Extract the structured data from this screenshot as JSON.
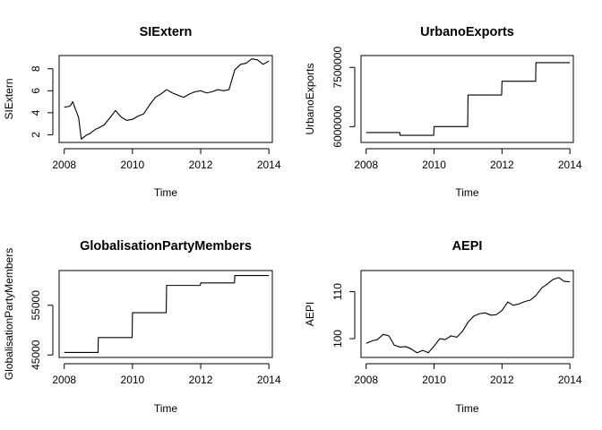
{
  "chart_data": [
    {
      "type": "line",
      "title": "SIExtern",
      "xlabel": "Time",
      "ylabel": "SIExtern",
      "xlim": [
        2007.85,
        2014.1
      ],
      "ylim": [
        1.3,
        9.2
      ],
      "xticks": [
        2008,
        2010,
        2012,
        2014
      ],
      "yticks": [
        2,
        4,
        6,
        8
      ],
      "x": [
        2008.0,
        2008.17,
        2008.25,
        2008.33,
        2008.42,
        2008.5,
        2008.58,
        2008.67,
        2008.75,
        2008.83,
        2008.92,
        2009.0,
        2009.17,
        2009.33,
        2009.5,
        2009.67,
        2009.83,
        2010.0,
        2010.17,
        2010.33,
        2010.5,
        2010.67,
        2010.83,
        2011.0,
        2011.17,
        2011.33,
        2011.5,
        2011.67,
        2011.83,
        2012.0,
        2012.17,
        2012.33,
        2012.5,
        2012.67,
        2012.83,
        2013.0,
        2013.17,
        2013.33,
        2013.5,
        2013.67,
        2013.83,
        2014.0
      ],
      "y": [
        4.5,
        4.6,
        5.0,
        4.3,
        3.6,
        1.6,
        1.8,
        2.0,
        2.1,
        2.3,
        2.5,
        2.6,
        2.9,
        3.5,
        4.2,
        3.6,
        3.3,
        3.4,
        3.7,
        3.9,
        4.7,
        5.4,
        5.7,
        6.1,
        5.8,
        5.6,
        5.4,
        5.7,
        5.9,
        6.0,
        5.8,
        5.9,
        6.1,
        6.0,
        6.1,
        7.9,
        8.4,
        8.5,
        8.9,
        8.8,
        8.4,
        8.7
      ]
    },
    {
      "type": "line",
      "title": "UrbanoExports",
      "xlabel": "Time",
      "ylabel": "UrbanoExports",
      "xlim": [
        2007.85,
        2014.1
      ],
      "ylim": [
        5600000,
        7800000
      ],
      "xticks": [
        2008,
        2010,
        2012,
        2014
      ],
      "yticks": [
        6000000,
        7500000
      ],
      "x": [
        2008.0,
        2008.99,
        2009.0,
        2009.99,
        2010.0,
        2010.99,
        2011.0,
        2011.99,
        2012.0,
        2012.99,
        2013.0,
        2014.0
      ],
      "y": [
        5850000,
        5850000,
        5780000,
        5780000,
        6000000,
        6000000,
        6800000,
        6800000,
        7150000,
        7150000,
        7620000,
        7620000
      ]
    },
    {
      "type": "line",
      "title": "GlobalisationPartyMembers",
      "xlabel": "Time",
      "ylabel": "GlobalisationPartyMembers",
      "xlim": [
        2007.85,
        2014.1
      ],
      "ylim": [
        44500,
        62000
      ],
      "xticks": [
        2008,
        2010,
        2012,
        2014
      ],
      "yticks": [
        45000,
        55000
      ],
      "x": [
        2008.0,
        2008.99,
        2009.0,
        2009.99,
        2010.0,
        2010.99,
        2011.0,
        2011.99,
        2012.0,
        2012.99,
        2013.0,
        2014.0
      ],
      "y": [
        45500,
        45500,
        48500,
        48500,
        53500,
        53500,
        59000,
        59000,
        59500,
        59500,
        61000,
        61000
      ]
    },
    {
      "type": "line",
      "title": "AEPI",
      "xlabel": "Time",
      "ylabel": "AEPI",
      "xlim": [
        2007.85,
        2014.1
      ],
      "ylim": [
        96,
        114.5
      ],
      "xticks": [
        2008,
        2010,
        2012,
        2014
      ],
      "yticks": [
        100,
        110
      ],
      "x": [
        2008.0,
        2008.17,
        2008.33,
        2008.5,
        2008.67,
        2008.83,
        2009.0,
        2009.17,
        2009.33,
        2009.5,
        2009.67,
        2009.83,
        2010.0,
        2010.17,
        2010.33,
        2010.5,
        2010.67,
        2010.83,
        2011.0,
        2011.17,
        2011.33,
        2011.5,
        2011.67,
        2011.83,
        2012.0,
        2012.17,
        2012.33,
        2012.5,
        2012.67,
        2012.83,
        2013.0,
        2013.17,
        2013.33,
        2013.5,
        2013.67,
        2013.83,
        2014.0
      ],
      "y": [
        99.0,
        99.5,
        99.8,
        100.9,
        100.6,
        98.6,
        98.2,
        98.3,
        97.8,
        97.0,
        97.5,
        97.0,
        98.4,
        100.0,
        99.8,
        100.6,
        100.3,
        101.5,
        103.5,
        104.8,
        105.3,
        105.5,
        105.0,
        105.1,
        106.0,
        107.8,
        107.1,
        107.4,
        107.9,
        108.2,
        109.2,
        110.8,
        111.6,
        112.6,
        113.0,
        112.2,
        112.1
      ]
    }
  ]
}
